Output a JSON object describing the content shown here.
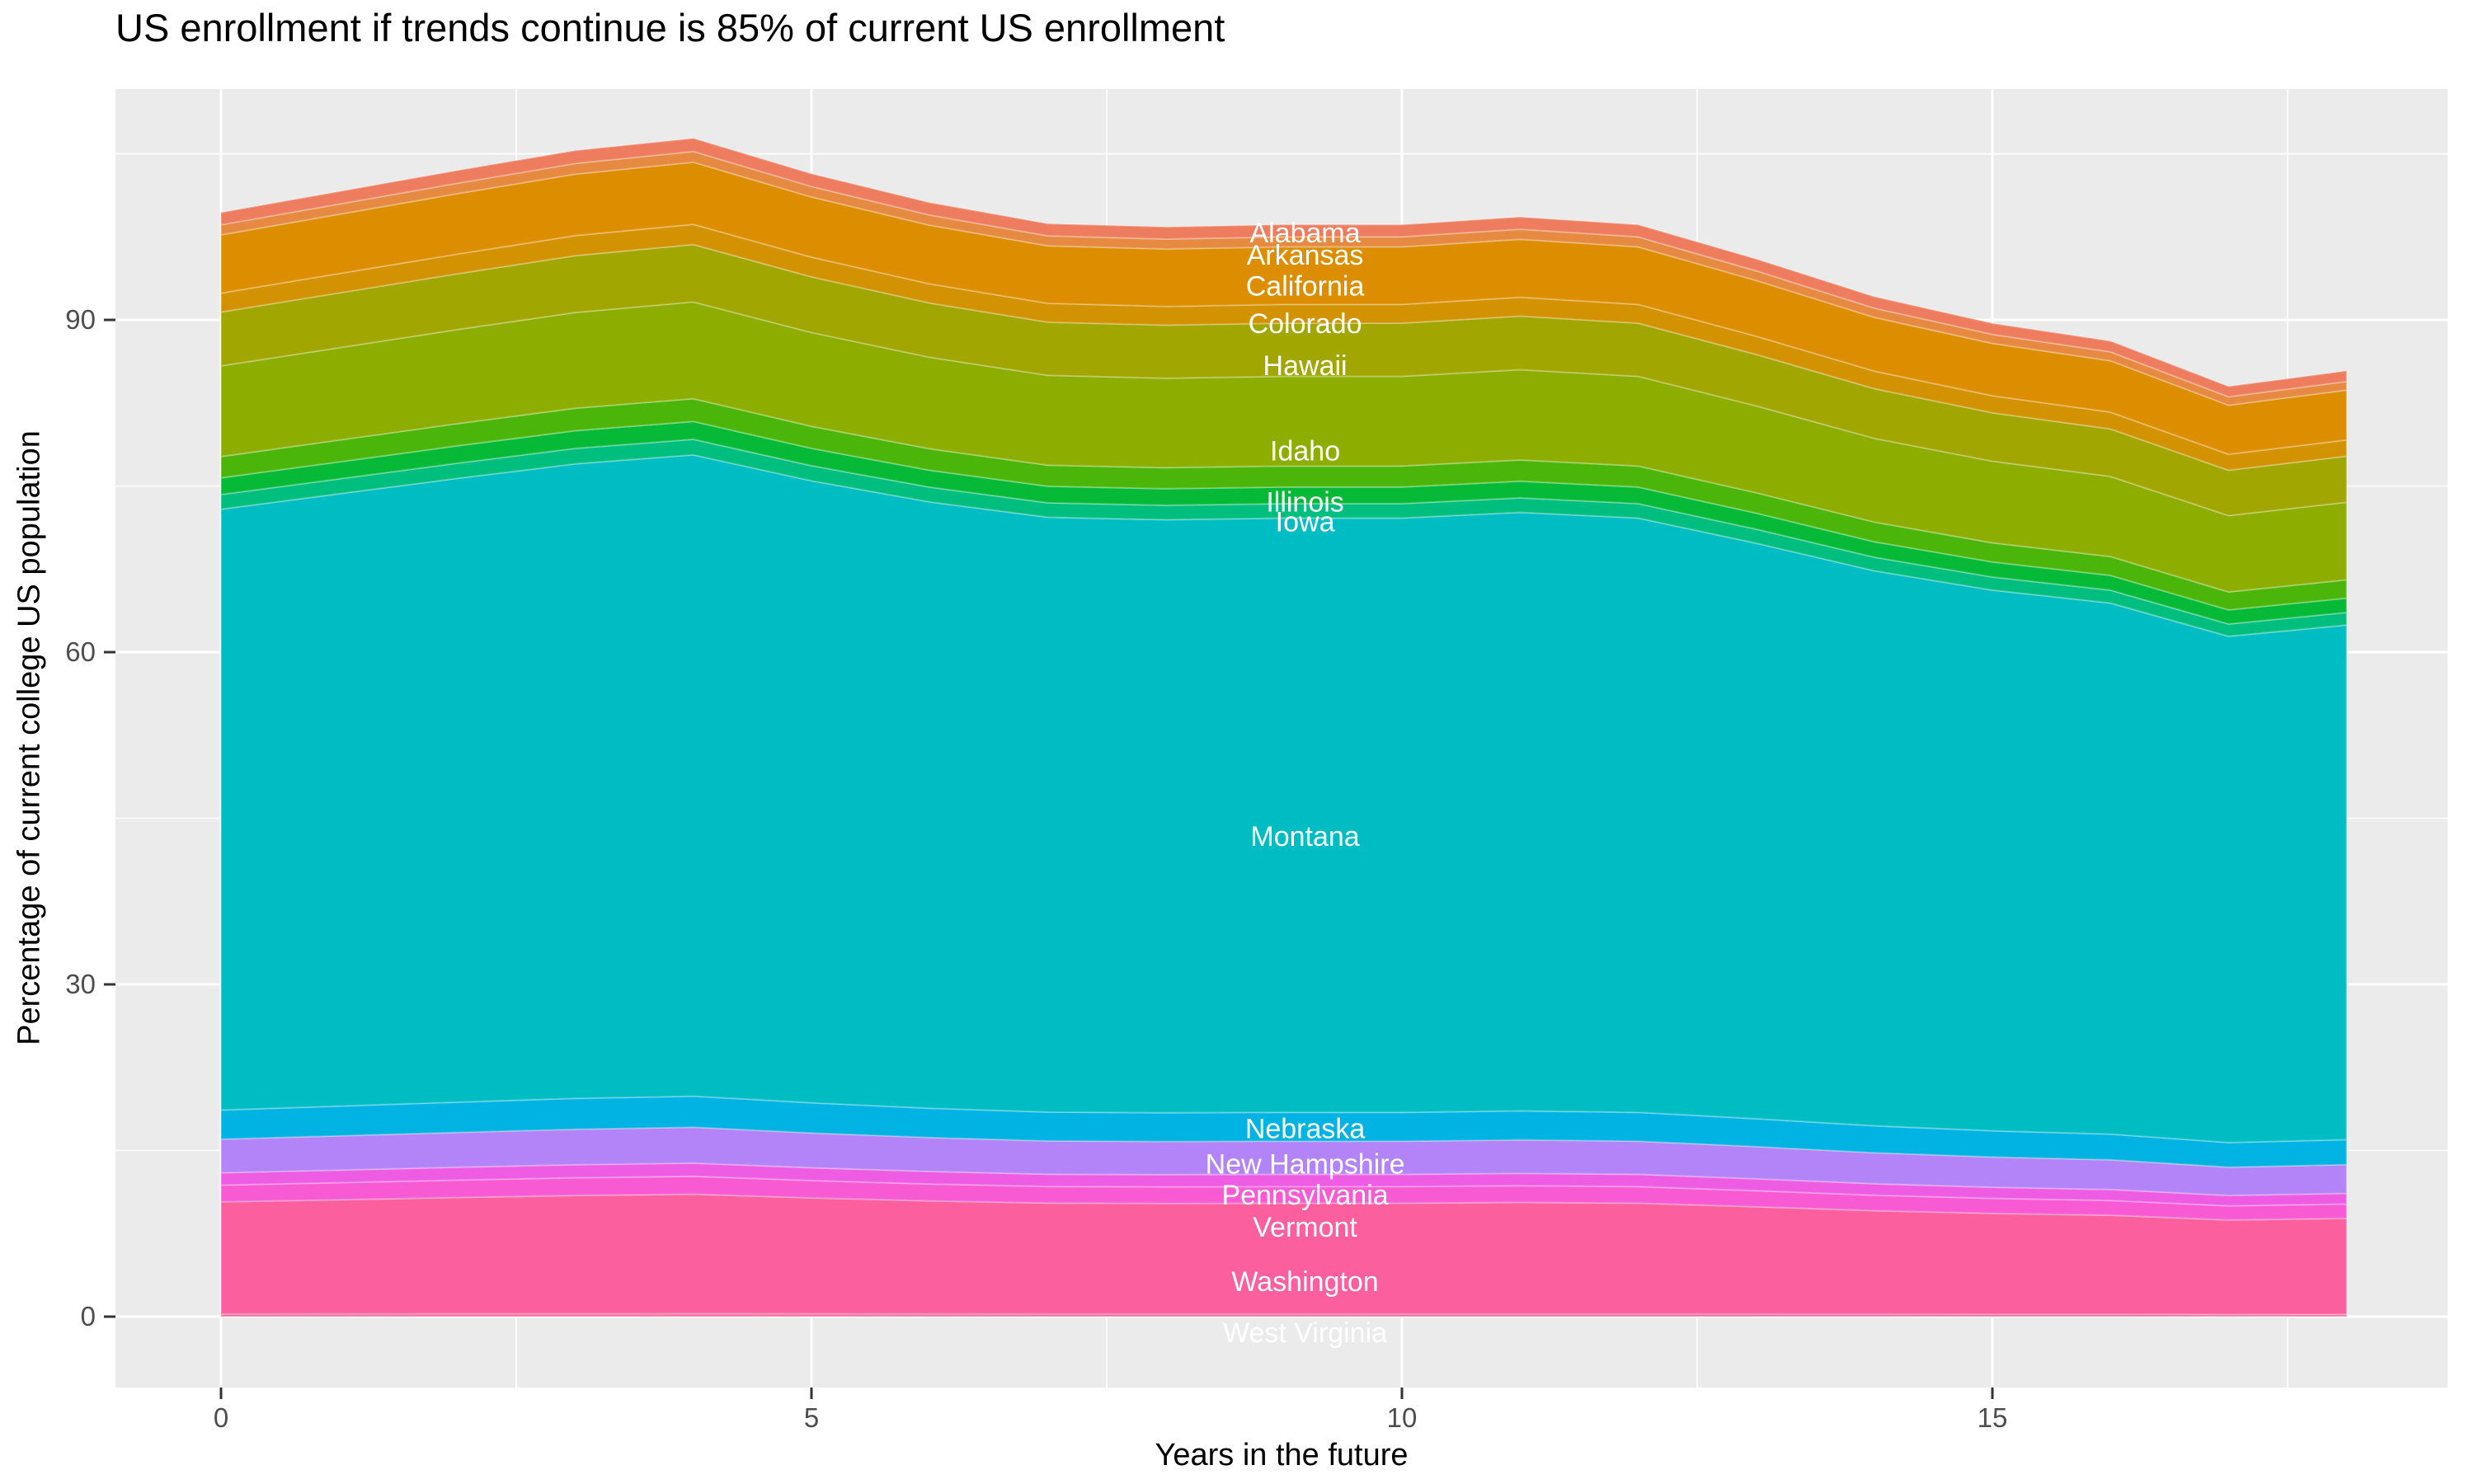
{
  "chart_data": {
    "type": "area",
    "stacked": true,
    "title": "US enrollment if trends continue is 85% of current US enrollment",
    "xlabel": "Years in the future",
    "ylabel": "Percentage of current college US population",
    "x": [
      0,
      1,
      2,
      3,
      4,
      5,
      6,
      7,
      8,
      9,
      10,
      11,
      12,
      13,
      14,
      15,
      16,
      17,
      18
    ],
    "x_ticks": [
      {
        "value": 0,
        "label": "0"
      },
      {
        "value": 5,
        "label": "5"
      },
      {
        "value": 10,
        "label": "10"
      },
      {
        "value": 15,
        "label": "15"
      }
    ],
    "y_ticks": [
      {
        "value": 0,
        "label": "0"
      },
      {
        "value": 30,
        "label": "30"
      },
      {
        "value": 60,
        "label": "60"
      },
      {
        "value": 90,
        "label": "90"
      }
    ],
    "xlim": [
      -0.9,
      18.85
    ],
    "ylim": [
      -6.4,
      112.1
    ],
    "grid": "white major and minor gridlines on grey panel",
    "legend_position": "none",
    "label_anchor_x": 9.18,
    "stack_totals": [
      99.7,
      101.6,
      103.5,
      105.3,
      106.4,
      103.2,
      100.6,
      98.7,
      98.4,
      98.6,
      98.6,
      99.3,
      98.6,
      95.5,
      92.1,
      89.7,
      88.1,
      84.0,
      85.4
    ],
    "series": [
      {
        "name": "Alabama",
        "label": "Alabama",
        "color": "#EE7C5F",
        "share_of_total": 0.0112,
        "label_y": 97.9
      },
      {
        "name": "Arkansas",
        "label": "Arkansas",
        "color": "#E68A41",
        "share_of_total": 0.0091,
        "label_y": 95.9
      },
      {
        "name": "California",
        "label": "California",
        "color": "#DD8D00",
        "share_of_total": 0.0527,
        "label_y": 93.1
      },
      {
        "name": "Colorado",
        "label": "Colorado",
        "color": "#D39202",
        "share_of_total": 0.0172,
        "label_y": 89.7
      },
      {
        "name": "Hawaii",
        "label": "Hawaii",
        "color": "#A2A600",
        "share_of_total": 0.0487,
        "label_y": 85.9
      },
      {
        "name": "Idaho",
        "label": "Idaho",
        "color": "#8DAE00",
        "share_of_total": 0.0821,
        "label_y": 78.2
      },
      {
        "name": "Illinois",
        "label": "Illinois",
        "color": "#4BB609",
        "share_of_total": 0.0193,
        "label_y": 73.6
      },
      {
        "name": "Iowa",
        "label": "Iowa",
        "color": "#06BA38",
        "share_of_total": 0.0152,
        "label_y": 71.8
      },
      {
        "name": "",
        "label": "",
        "color": "#00BE7E",
        "share_of_total": 0.0132,
        "label_y": null
      },
      {
        "name": "Montana",
        "label": "Montana",
        "color": "#00BDC3",
        "share_of_total": 0.5442,
        "label_y": 43.4
      },
      {
        "name": "Nebraska",
        "label": "Nebraska",
        "color": "#00B3E3",
        "share_of_total": 0.0264,
        "label_y": 17.0
      },
      {
        "name": "New Hampshire",
        "label": "New Hampshire",
        "color": "#B284F8",
        "share_of_total": 0.0304,
        "label_y": 13.8
      },
      {
        "name": "Pennsylvania",
        "label": "Pennsylvania",
        "color": "#EE5CE4",
        "share_of_total": 0.0112,
        "label_y": 11.0
      },
      {
        "name": "Vermont",
        "label": "Vermont",
        "color": "#F85AD4",
        "share_of_total": 0.0152,
        "label_y": 8.1
      },
      {
        "name": "Washington",
        "label": "Washington",
        "color": "#FB5F9D",
        "share_of_total": 0.1014,
        "label_y": 3.2
      },
      {
        "name": "West Virginia",
        "label": "West Virginia",
        "color": "#FF6B9B",
        "share_of_total": 0.0025,
        "label_y": -1.4
      }
    ]
  },
  "panel": {
    "background": "#EBEBEB",
    "grid_color": "#FFFFFF",
    "tick_mark_color": "#333333",
    "tick_label_color": "#4D4D4D",
    "band_label_color": "#FFFFFF"
  }
}
